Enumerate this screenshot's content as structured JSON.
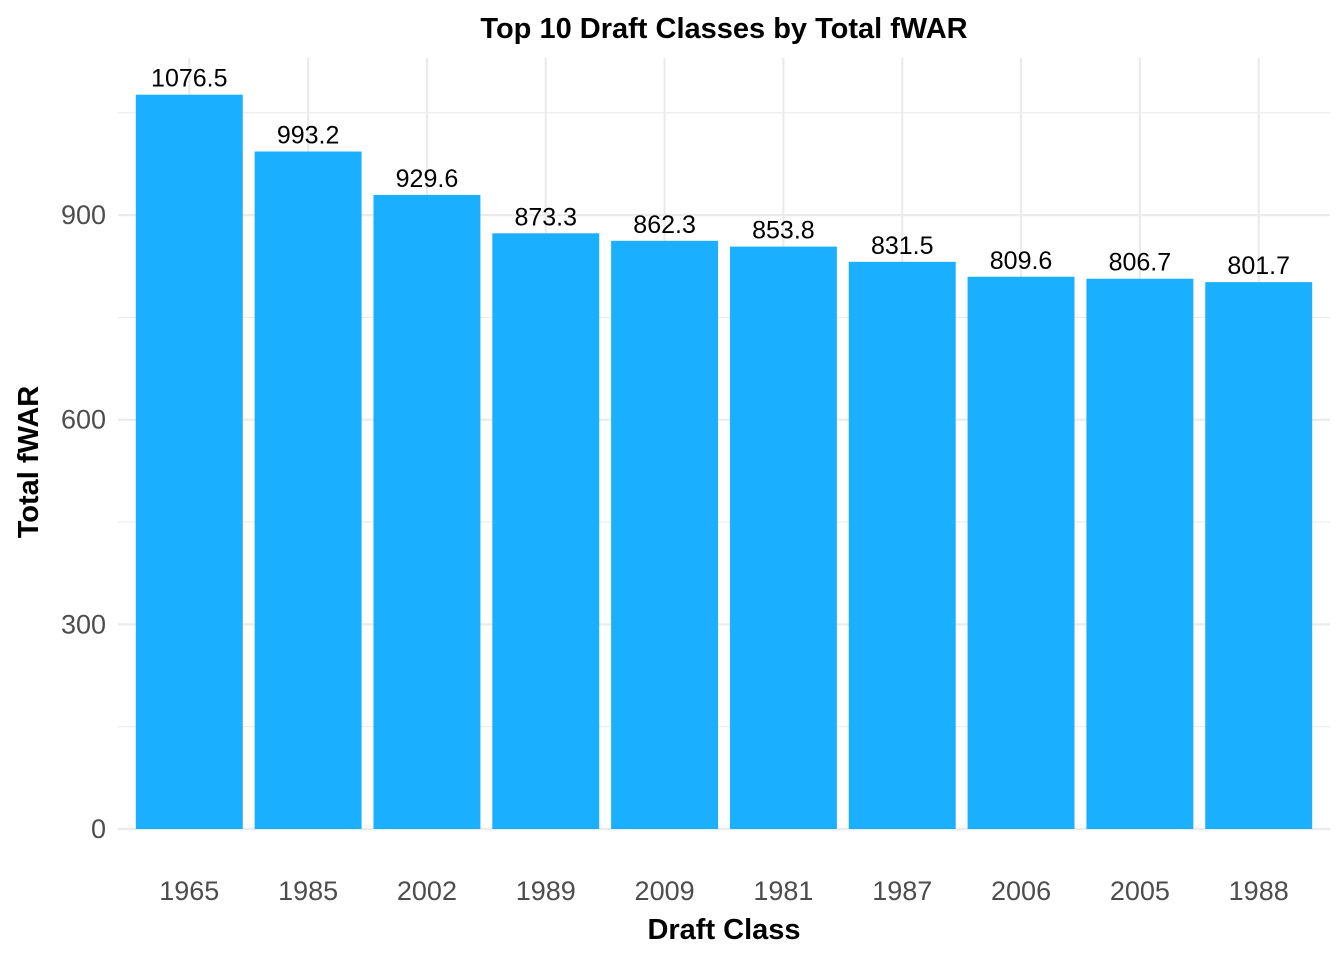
{
  "chart_data": {
    "type": "bar",
    "title": "Top 10 Draft Classes by Total fWAR",
    "xlabel": "Draft Class",
    "ylabel": "Total fWAR",
    "categories": [
      "1965",
      "1985",
      "2002",
      "1989",
      "2009",
      "1981",
      "1987",
      "2006",
      "2005",
      "1988"
    ],
    "values": [
      1076.5,
      993.2,
      929.6,
      873.3,
      862.3,
      853.8,
      831.5,
      809.6,
      806.7,
      801.7
    ],
    "data_labels": [
      "1076.5",
      "993.2",
      "929.6",
      "873.3",
      "862.3",
      "853.8",
      "831.5",
      "809.6",
      "806.7",
      "801.7"
    ],
    "yticks": [
      0,
      300,
      600,
      900
    ],
    "ytick_labels": [
      "0",
      "300",
      "600",
      "900"
    ],
    "ylim": [
      0,
      1130.3
    ],
    "grid": true,
    "legend": "none",
    "colors": {
      "bar": "#1AB0FF",
      "grid": "#EBEBEB",
      "tick_text": "#4D4D4D",
      "title_text": "#000000"
    }
  }
}
